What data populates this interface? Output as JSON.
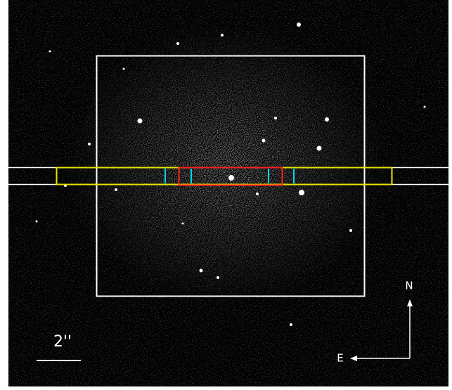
{
  "scale_label": "2''",
  "compass": {
    "north": "N",
    "east": "E"
  }
}
